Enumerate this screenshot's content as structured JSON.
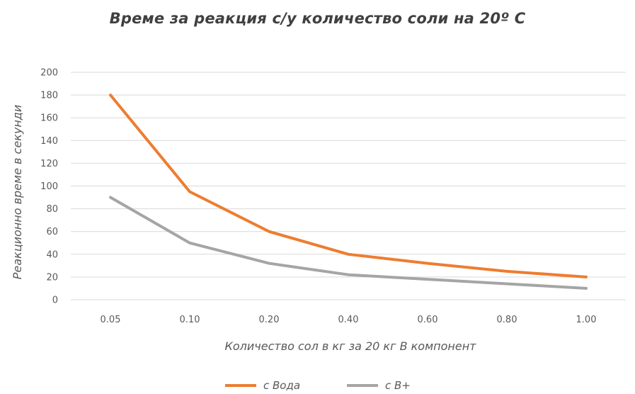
{
  "chart_data": {
    "type": "line",
    "title": "Време за реакция с/у количество соли на 20º C",
    "xlabel": "Количество сол в кг за 20 кг В компонент",
    "ylabel": "Реакционно време в секунди",
    "categories": [
      "0.05",
      "0.10",
      "0.20",
      "0.40",
      "0.60",
      "0.80",
      "1.00"
    ],
    "ylim": [
      0,
      200
    ],
    "yticks": [
      0,
      20,
      40,
      60,
      80,
      100,
      120,
      140,
      160,
      180,
      200
    ],
    "grid": true,
    "legend_position": "bottom",
    "series": [
      {
        "name": "с Вода",
        "color": "#ed7d31",
        "values": [
          180,
          95,
          60,
          40,
          32,
          25,
          20
        ]
      },
      {
        "name": "с  В+",
        "color": "#a5a5a5",
        "values": [
          90,
          50,
          32,
          22,
          18,
          14,
          10
        ]
      }
    ]
  }
}
